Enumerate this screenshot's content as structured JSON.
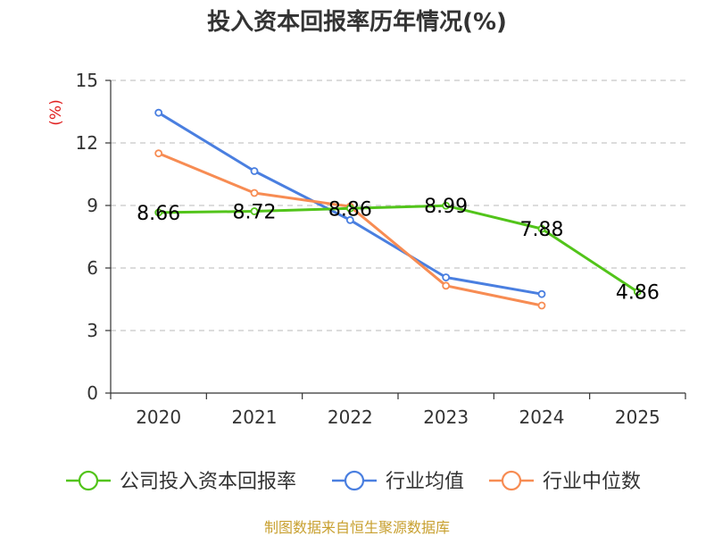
{
  "chart_data": {
    "type": "line",
    "title": "投入资本回报率历年情况(%)",
    "ylabel": "(%)",
    "xlabel": "",
    "ylim": [
      0,
      15
    ],
    "yticks": [
      0,
      3,
      6,
      9,
      12,
      15
    ],
    "categories": [
      "2020",
      "2021",
      "2022",
      "2023",
      "2024",
      "2025"
    ],
    "grid": true,
    "legend_position": "bottom",
    "series": [
      {
        "name": "公司投入资本回报率",
        "color": "#52c41a",
        "values": [
          8.66,
          8.72,
          8.86,
          8.99,
          7.88,
          4.86
        ],
        "labels": [
          "8.66",
          "8.72",
          "8.86",
          "8.99",
          "7.88",
          "4.86"
        ]
      },
      {
        "name": "行业均值",
        "color": "#4a7fe0",
        "values": [
          13.45,
          10.65,
          8.3,
          5.55,
          4.75,
          null
        ]
      },
      {
        "name": "行业中位数",
        "color": "#f78c53",
        "values": [
          11.5,
          9.6,
          8.95,
          5.15,
          4.2,
          null
        ]
      }
    ],
    "source": "制图数据来自恒生聚源数据库"
  }
}
